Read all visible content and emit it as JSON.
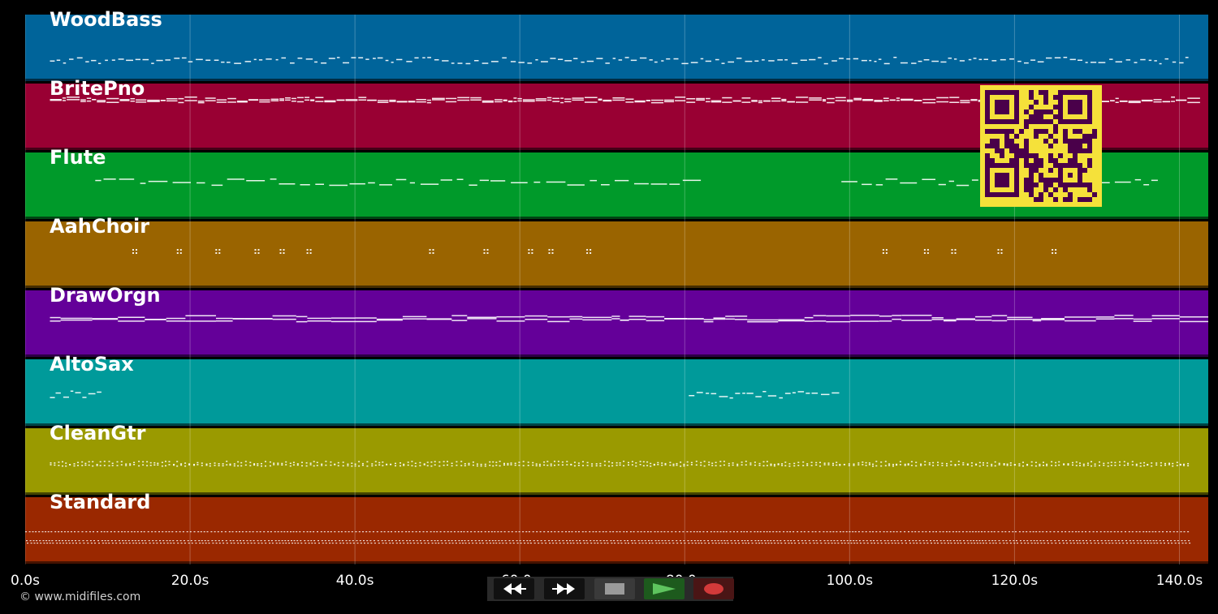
{
  "timeline": {
    "max_seconds": 143.5,
    "ticks": [
      "0.0s",
      "20.0s",
      "40.0s",
      "60.0s",
      "80.0s",
      "100.0s",
      "120.0s",
      "140.0s"
    ],
    "tick_values": [
      0,
      20,
      40,
      60,
      80,
      100,
      120,
      140
    ]
  },
  "tracks": [
    {
      "name": "WoodBass",
      "color": "#00649a",
      "pattern": "bass",
      "segments": [
        [
          3,
          141
        ]
      ]
    },
    {
      "name": "BritePno",
      "color": "#990033",
      "pattern": "piano",
      "segments": [
        [
          3,
          141
        ]
      ]
    },
    {
      "name": "Flute",
      "color": "#009a2a",
      "pattern": "flute",
      "segments": [
        [
          8.5,
          81
        ],
        [
          99,
          137.5
        ]
      ]
    },
    {
      "name": "AahChoir",
      "color": "#9a6400",
      "pattern": "choir",
      "segments": [
        [
          13,
          36
        ],
        [
          49,
          72
        ],
        [
          104,
          127
        ]
      ]
    },
    {
      "name": "DrawOrgn",
      "color": "#640099",
      "pattern": "organ",
      "segments": [
        [
          3,
          141
        ]
      ]
    },
    {
      "name": "AltoSax",
      "color": "#009a9a",
      "pattern": "sax",
      "segments": [
        [
          3,
          9
        ],
        [
          80.5,
          99
        ]
      ]
    },
    {
      "name": "CleanGtr",
      "color": "#9a9a00",
      "pattern": "guitar",
      "segments": [
        [
          3,
          141
        ]
      ]
    },
    {
      "name": "Standard",
      "color": "#9a2800",
      "pattern": "drums",
      "segments": [
        [
          0,
          141
        ]
      ]
    }
  ],
  "copyright": "© www.midifiles.com",
  "transport": {
    "rewind_icon": "rewind-icon",
    "fast_forward_icon": "fast-forward-icon",
    "stop_icon": "stop-icon",
    "play_icon": "play-icon",
    "record_icon": "record-icon"
  },
  "qr_code": "qr-code-icon",
  "colors": {
    "qr_fg": "#4a004a",
    "qr_bg": "#f5e13a",
    "play": "#5ec45e",
    "record": "#d23a3a",
    "stop": "#9a9a9a"
  }
}
